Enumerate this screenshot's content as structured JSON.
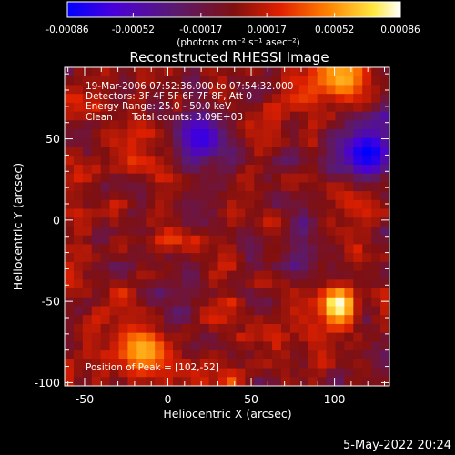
{
  "colorbar": {
    "tick_labels": [
      "-0.00086",
      "-0.00052",
      "-0.00017",
      "0.00017",
      "0.00052",
      "0.00086"
    ],
    "tick_values": [
      -0.00086,
      -0.00052,
      -0.00017,
      0.00017,
      0.00052,
      0.00086
    ],
    "range": [
      -0.00086,
      0.00086
    ],
    "unit_label": "(photons cm⁻² s⁻¹ asec⁻²)",
    "colors": [
      "#0000ff",
      "#4a00d8",
      "#5a1a70",
      "#801010",
      "#e02000",
      "#ff8000",
      "#ffe840",
      "#ffffff"
    ]
  },
  "annotations": {
    "time_range": "19-Mar-2006 07:52:36.000 to 07:54:32.000",
    "detectors": "Detectors: 3F 4F 5F 6F 7F 8F, Att 0",
    "energy": "Energy Range: 25.0 - 50.0 keV",
    "clean": "Clean",
    "total_counts": "Total counts: 3.09E+03",
    "peak": "Position of Peak = [102,-52]"
  },
  "footer": {
    "timestamp": "5-May-2022 20:24"
  },
  "chart_data": {
    "type": "heatmap",
    "title": "Reconstructed RHESSI Image",
    "xlabel": "Heliocentric X (arcsec)",
    "ylabel": "Heliocentric Y (arcsec)",
    "xlim": [
      -62,
      133
    ],
    "ylim": [
      -102,
      94
    ],
    "x_ticks": [
      -50,
      0,
      50,
      100
    ],
    "x_tick_labels": [
      "-50",
      "0",
      "50",
      "100"
    ],
    "y_ticks": [
      -100,
      -50,
      0,
      50
    ],
    "y_tick_labels": [
      "-100",
      "-50",
      "0",
      "50"
    ],
    "grid": false,
    "peak_position": [
      102,
      -52
    ],
    "notable_regions": [
      {
        "x": 102,
        "y": -52,
        "value": 0.00086,
        "note": "brightest source"
      },
      {
        "x": -15,
        "y": -80,
        "value": 0.0006
      },
      {
        "x": 105,
        "y": 87,
        "value": 0.0006
      },
      {
        "x": 120,
        "y": 42,
        "value": -0.00086
      },
      {
        "x": 20,
        "y": 50,
        "value": -0.0007
      }
    ]
  }
}
